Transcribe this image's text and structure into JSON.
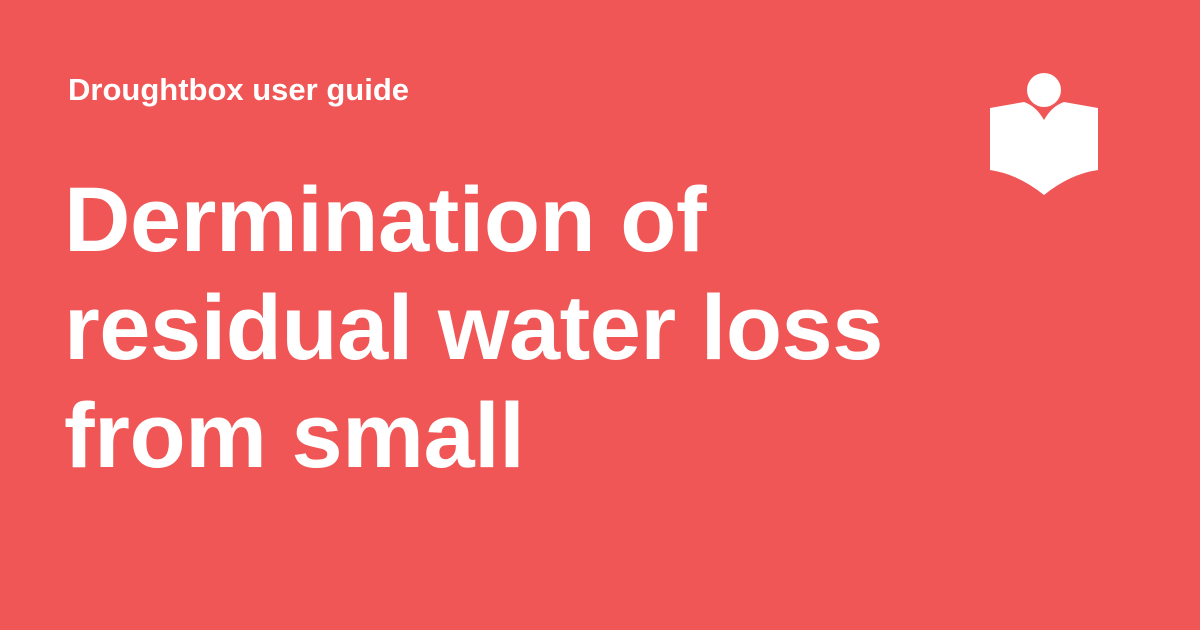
{
  "brand": {
    "accent_color": "#f05656",
    "text_color": "#ffffff",
    "logo_icon": "reader-book-icon"
  },
  "header": {
    "site_name": "Droughtbox user guide"
  },
  "title": {
    "lines": [
      "Dermination of",
      "residual water loss",
      "from small"
    ]
  }
}
